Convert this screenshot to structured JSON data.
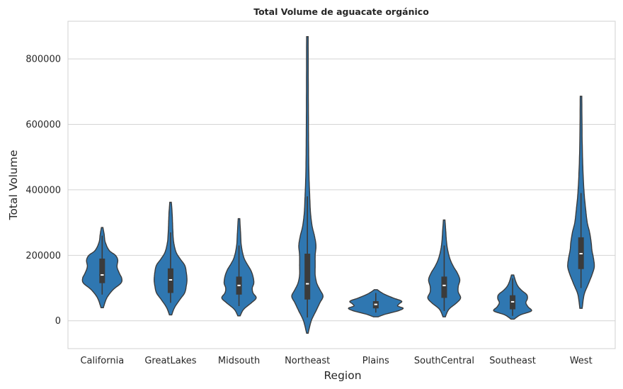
{
  "chart_data": {
    "type": "violin",
    "title": "Total Volume de aguacate orgánico",
    "xlabel": "Region",
    "ylabel": "Total Volume",
    "ylim": [
      -85000,
      915000
    ],
    "yticks": [
      0,
      200000,
      400000,
      600000,
      800000
    ],
    "grid": true,
    "color": "#2f77b1",
    "edge_color": "#3b3b3b",
    "categories": [
      "California",
      "GreatLakes",
      "Midsouth",
      "Northeast",
      "Plains",
      "SouthCentral",
      "Southeast",
      "West"
    ],
    "violins": [
      {
        "category": "California",
        "min": 40000,
        "max": 285000,
        "q1": 115000,
        "median": 140000,
        "q3": 190000,
        "whisker_low": 80000,
        "whisker_high": 260000,
        "density": [
          [
            40000,
            1.5
          ],
          [
            70000,
            6
          ],
          [
            95000,
            14
          ],
          [
            115000,
            24
          ],
          [
            130000,
            25
          ],
          [
            145000,
            22
          ],
          [
            165000,
            19
          ],
          [
            185000,
            20
          ],
          [
            200000,
            17
          ],
          [
            215000,
            9
          ],
          [
            240000,
            4
          ],
          [
            265000,
            2.5
          ],
          [
            285000,
            1
          ]
        ]
      },
      {
        "category": "GreatLakes",
        "min": 18000,
        "max": 362000,
        "q1": 85000,
        "median": 125000,
        "q3": 160000,
        "whisker_low": 55000,
        "whisker_high": 270000,
        "density": [
          [
            18000,
            1.5
          ],
          [
            40000,
            5
          ],
          [
            65000,
            12
          ],
          [
            85000,
            18
          ],
          [
            105000,
            20
          ],
          [
            125000,
            21
          ],
          [
            150000,
            20
          ],
          [
            170000,
            18
          ],
          [
            190000,
            12
          ],
          [
            210000,
            7
          ],
          [
            240000,
            4
          ],
          [
            270000,
            3
          ],
          [
            300000,
            2.5
          ],
          [
            330000,
            2
          ],
          [
            362000,
            1
          ]
        ]
      },
      {
        "category": "Midsouth",
        "min": 15000,
        "max": 312000,
        "q1": 80000,
        "median": 108000,
        "q3": 135000,
        "whisker_low": 45000,
        "whisker_high": 230000,
        "density": [
          [
            15000,
            1.5
          ],
          [
            35000,
            6
          ],
          [
            55000,
            16
          ],
          [
            70000,
            22
          ],
          [
            85000,
            18
          ],
          [
            100000,
            17
          ],
          [
            115000,
            19
          ],
          [
            135000,
            18
          ],
          [
            155000,
            15
          ],
          [
            175000,
            10
          ],
          [
            195000,
            6
          ],
          [
            230000,
            3
          ],
          [
            270000,
            2
          ],
          [
            312000,
            1
          ]
        ]
      },
      {
        "category": "Northeast",
        "min": -38000,
        "max": 868000,
        "q1": 65000,
        "median": 113000,
        "q3": 205000,
        "whisker_low": 10000,
        "whisker_high": 380000,
        "density": [
          [
            -38000,
            1
          ],
          [
            0,
            5
          ],
          [
            30000,
            11
          ],
          [
            55000,
            16
          ],
          [
            75000,
            20
          ],
          [
            95000,
            16
          ],
          [
            115000,
            12
          ],
          [
            140000,
            10
          ],
          [
            170000,
            10
          ],
          [
            200000,
            10
          ],
          [
            230000,
            11
          ],
          [
            260000,
            9
          ],
          [
            290000,
            6
          ],
          [
            330000,
            4
          ],
          [
            380000,
            3
          ],
          [
            450000,
            2
          ],
          [
            550000,
            1.5
          ],
          [
            700000,
            1.2
          ],
          [
            868000,
            1
          ]
        ]
      },
      {
        "category": "Plains",
        "min": 12000,
        "max": 95000,
        "q1": 38000,
        "median": 50000,
        "q3": 60000,
        "whisker_low": 25000,
        "whisker_high": 85000,
        "density": [
          [
            12000,
            3
          ],
          [
            20000,
            12
          ],
          [
            30000,
            28
          ],
          [
            38000,
            35
          ],
          [
            45000,
            28
          ],
          [
            52000,
            30
          ],
          [
            60000,
            33
          ],
          [
            70000,
            22
          ],
          [
            80000,
            12
          ],
          [
            88000,
            6
          ],
          [
            95000,
            2
          ]
        ]
      },
      {
        "category": "SouthCentral",
        "min": 12000,
        "max": 308000,
        "q1": 70000,
        "median": 108000,
        "q3": 135000,
        "whisker_low": 30000,
        "whisker_high": 230000,
        "density": [
          [
            12000,
            1.5
          ],
          [
            35000,
            6
          ],
          [
            55000,
            16
          ],
          [
            70000,
            21
          ],
          [
            88000,
            18
          ],
          [
            105000,
            18
          ],
          [
            125000,
            20
          ],
          [
            145000,
            17
          ],
          [
            165000,
            12
          ],
          [
            185000,
            8
          ],
          [
            210000,
            5
          ],
          [
            240000,
            3
          ],
          [
            275000,
            2
          ],
          [
            308000,
            1
          ]
        ]
      },
      {
        "category": "Southeast",
        "min": 5000,
        "max": 140000,
        "q1": 35000,
        "median": 58000,
        "q3": 78000,
        "whisker_low": 15000,
        "whisker_high": 130000,
        "density": [
          [
            5000,
            2
          ],
          [
            18000,
            10
          ],
          [
            30000,
            24
          ],
          [
            42000,
            20
          ],
          [
            55000,
            17
          ],
          [
            68000,
            19
          ],
          [
            80000,
            18
          ],
          [
            92000,
            12
          ],
          [
            105000,
            7
          ],
          [
            120000,
            4
          ],
          [
            140000,
            1.5
          ]
        ]
      },
      {
        "category": "West",
        "min": 38000,
        "max": 686000,
        "q1": 158000,
        "median": 205000,
        "q3": 255000,
        "whisker_low": 100000,
        "whisker_high": 390000,
        "density": [
          [
            38000,
            1.5
          ],
          [
            80000,
            4
          ],
          [
            110000,
            9
          ],
          [
            140000,
            14
          ],
          [
            165000,
            17
          ],
          [
            190000,
            16
          ],
          [
            215000,
            14
          ],
          [
            240000,
            13
          ],
          [
            270000,
            11
          ],
          [
            300000,
            8
          ],
          [
            340000,
            6
          ],
          [
            390000,
            4
          ],
          [
            460000,
            2.5
          ],
          [
            550000,
            1.5
          ],
          [
            686000,
            1
          ]
        ]
      }
    ]
  }
}
